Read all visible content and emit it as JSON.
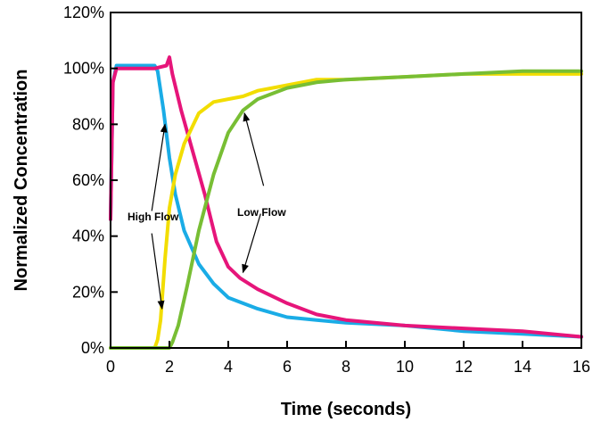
{
  "chart_data": {
    "type": "line",
    "title": "",
    "xlabel": "Time (seconds)",
    "ylabel": "Normalized Concentration",
    "xlim": [
      0,
      16
    ],
    "ylim": [
      0,
      120
    ],
    "x_ticks": [
      "0",
      "2",
      "4",
      "6",
      "8",
      "10",
      "12",
      "14",
      "16"
    ],
    "y_ticks": [
      "0%",
      "20%",
      "40%",
      "60%",
      "80%",
      "100%",
      "120%"
    ],
    "grid": false,
    "legend": "none",
    "series": [
      {
        "color": "#1aace6",
        "x": [
          0,
          0.08,
          0.2,
          0.5,
          1,
          1.5,
          1.6,
          1.8,
          2.0,
          2.2,
          2.5,
          3.0,
          3.5,
          4,
          5,
          6,
          7,
          8,
          10,
          12,
          14,
          16
        ],
        "y": [
          46,
          95,
          101,
          101,
          101,
          101,
          99,
          85,
          68,
          55,
          42,
          30,
          23,
          18,
          14,
          11,
          10,
          9,
          8,
          6,
          5,
          4
        ]
      },
      {
        "color": "#e6157a",
        "x": [
          0,
          0.08,
          0.2,
          0.5,
          1,
          1.5,
          1.9,
          2.0,
          2.1,
          2.4,
          2.8,
          3.2,
          3.6,
          4,
          4.4,
          5,
          6,
          7,
          8,
          10,
          12,
          14,
          16
        ],
        "y": [
          46,
          95,
          100,
          100,
          100,
          100,
          101,
          104,
          98,
          85,
          70,
          55,
          38,
          29,
          25,
          21,
          16,
          12,
          10,
          8,
          7,
          6,
          4
        ]
      },
      {
        "color": "#f2dd00",
        "x": [
          0,
          1.5,
          1.6,
          1.7,
          1.85,
          2.0,
          2.2,
          2.5,
          3.0,
          3.5,
          4,
          4.5,
          5,
          6,
          7,
          8,
          10,
          12,
          14,
          16
        ],
        "y": [
          0,
          0,
          3,
          10,
          32,
          50,
          62,
          73,
          84,
          88,
          89,
          90,
          92,
          94,
          96,
          96,
          97,
          98,
          98,
          98
        ]
      },
      {
        "color": "#78be34",
        "x": [
          0,
          2.0,
          2.1,
          2.3,
          2.6,
          3.0,
          3.5,
          4.0,
          4.5,
          5,
          6,
          7,
          8,
          10,
          12,
          14,
          16
        ],
        "y": [
          0,
          0,
          2,
          8,
          22,
          42,
          62,
          77,
          85,
          89,
          93,
          95,
          96,
          97,
          98,
          99,
          99
        ]
      }
    ],
    "annotations": [
      {
        "text": "High Flow"
      },
      {
        "text": "Low Flow"
      }
    ]
  }
}
